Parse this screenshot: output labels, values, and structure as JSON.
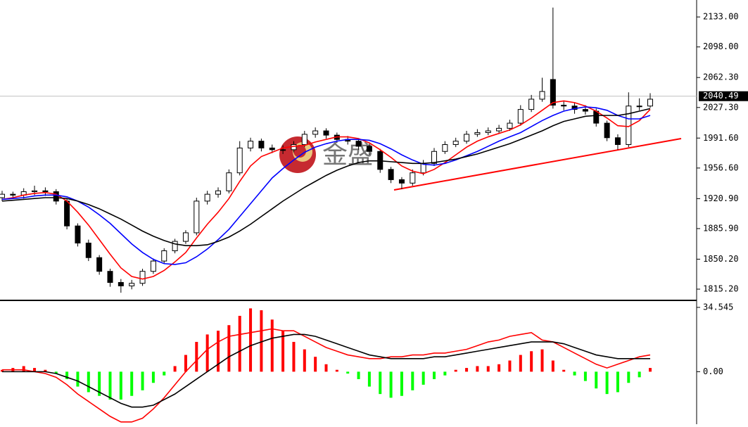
{
  "chart_data": [
    {
      "type": "candlestick",
      "watermark": "金盛",
      "ylim": [
        1802.9,
        2152.8
      ],
      "yticks": [
        {
          "value": 2133,
          "label": "2133.00"
        },
        {
          "value": 2098,
          "label": "2098.00"
        },
        {
          "value": 2062.3,
          "label": "2062.30"
        },
        {
          "value": 2027.3,
          "label": "2027.30"
        },
        {
          "value": 1991.6,
          "label": "1991.60"
        },
        {
          "value": 1956.6,
          "label": "1956.60"
        },
        {
          "value": 1920.9,
          "label": "1920.90"
        },
        {
          "value": 1885.9,
          "label": "1885.90"
        },
        {
          "value": 1850.2,
          "label": "1850.20"
        },
        {
          "value": 1815.2,
          "label": "1815.20"
        }
      ],
      "last_price": 2040.49,
      "up_color": "#ffffff",
      "down_color": "#000000",
      "open": [
        1922,
        1926,
        1925,
        1929,
        1930,
        1929,
        1918,
        1889,
        1869,
        1852,
        1836,
        1823,
        1819,
        1822,
        1836,
        1848,
        1860,
        1871,
        1881,
        1918,
        1926,
        1930,
        1951,
        1980,
        1988,
        1980,
        1978,
        1978,
        1984,
        1996,
        2000,
        1995,
        1990,
        1988,
        1982,
        1976,
        1955,
        1943,
        1939,
        1951,
        1962,
        1976,
        1984,
        1988,
        1996,
        1998,
        2000,
        2003,
        2009,
        2025,
        2037,
        2060,
        2030,
        2029,
        2025,
        2023,
        2009,
        1992,
        1984,
        2029,
        2029
      ],
      "high": [
        1930,
        1929,
        1933,
        1936,
        1934,
        1932,
        1921,
        1892,
        1873,
        1855,
        1839,
        1827,
        1826,
        1839,
        1851,
        1863,
        1874,
        1884,
        1922,
        1930,
        1934,
        1955,
        1988,
        1992,
        1991,
        1984,
        1983,
        1988,
        2000,
        2004,
        2003,
        1998,
        1994,
        1991,
        1985,
        1979,
        1958,
        1946,
        1955,
        1966,
        1980,
        1988,
        1992,
        2000,
        2002,
        2004,
        2007,
        2013,
        2030,
        2042,
        2062,
        2144,
        2035,
        2033,
        2030,
        2026,
        2012,
        1996,
        2045,
        2038,
        2044
      ],
      "low": [
        1918,
        1921,
        1921,
        1925,
        1924,
        1914,
        1885,
        1865,
        1848,
        1832,
        1818,
        1811,
        1815,
        1819,
        1833,
        1845,
        1857,
        1868,
        1878,
        1914,
        1922,
        1927,
        1948,
        1976,
        1976,
        1974,
        1973,
        1975,
        1981,
        1992,
        1991,
        1986,
        1984,
        1978,
        1972,
        1951,
        1939,
        1932,
        1936,
        1948,
        1959,
        1973,
        1981,
        1985,
        1993,
        1995,
        1997,
        2000,
        2006,
        2022,
        2034,
        2026,
        2024,
        2020,
        2019,
        2005,
        1988,
        1978,
        1981,
        2024,
        2027
      ],
      "close": [
        1926,
        1925,
        1929,
        1930,
        1929,
        1918,
        1889,
        1869,
        1852,
        1836,
        1823,
        1819,
        1822,
        1836,
        1848,
        1860,
        1871,
        1881,
        1918,
        1926,
        1930,
        1951,
        1980,
        1988,
        1980,
        1978,
        1978,
        1984,
        1996,
        2000,
        1995,
        1990,
        1988,
        1982,
        1976,
        1955,
        1943,
        1939,
        1951,
        1962,
        1976,
        1984,
        1988,
        1996,
        1998,
        2000,
        2003,
        2009,
        2025,
        2037,
        2046,
        2030,
        2029,
        2025,
        2023,
        2009,
        1992,
        1984,
        2029,
        2029,
        2037
      ],
      "series": [
        {
          "color": "#ff0000",
          "values": [
            1920,
            1922,
            1925,
            1927,
            1928,
            1926,
            1918,
            1905,
            1890,
            1873,
            1856,
            1840,
            1830,
            1827,
            1830,
            1837,
            1847,
            1858,
            1875,
            1891,
            1905,
            1921,
            1941,
            1959,
            1970,
            1975,
            1980,
            1982,
            1983,
            1987,
            1990,
            1993,
            1993,
            1991,
            1986,
            1978,
            1969,
            1959,
            1953,
            1950,
            1955,
            1963,
            1972,
            1981,
            1988,
            1993,
            1997,
            2001,
            2007,
            2015,
            2024,
            2033,
            2035,
            2033,
            2029,
            2023,
            2015,
            2006,
            2005,
            2012,
            2025
          ]
        },
        {
          "color": "#0000ff",
          "values": [
            1920,
            1921,
            1922,
            1924,
            1925,
            1925,
            1923,
            1918,
            1911,
            1902,
            1892,
            1880,
            1868,
            1858,
            1850,
            1845,
            1844,
            1846,
            1853,
            1862,
            1873,
            1885,
            1900,
            1915,
            1930,
            1945,
            1956,
            1966,
            1975,
            1981,
            1985,
            1988,
            1990,
            1990,
            1989,
            1985,
            1979,
            1972,
            1966,
            1961,
            1960,
            1962,
            1966,
            1971,
            1976,
            1982,
            1988,
            1993,
            1998,
            2005,
            2012,
            2018,
            2023,
            2026,
            2028,
            2027,
            2024,
            2018,
            2014,
            2014,
            2018
          ]
        },
        {
          "color": "#000000",
          "values": [
            1918,
            1919,
            1920,
            1921,
            1922,
            1922,
            1921,
            1918,
            1914,
            1909,
            1903,
            1897,
            1890,
            1883,
            1877,
            1872,
            1868,
            1866,
            1866,
            1867,
            1871,
            1876,
            1883,
            1891,
            1900,
            1909,
            1918,
            1926,
            1934,
            1941,
            1948,
            1954,
            1959,
            1963,
            1965,
            1965,
            1964,
            1963,
            1962,
            1962,
            1963,
            1965,
            1967,
            1970,
            1973,
            1977,
            1981,
            1985,
            1990,
            1995,
            2000,
            2006,
            2011,
            2014,
            2017,
            2018,
            2018,
            2018,
            2020,
            2023,
            2026
          ]
        }
      ]
    },
    {
      "type": "macd",
      "ylim": [
        -28.2,
        37.55
      ],
      "yticks": [
        34.545,
        {
          "value": 0,
          "label": "0.00"
        }
      ],
      "positive_color": "#ff0000",
      "negative_color": "#00ff00",
      "values": [
        1,
        2,
        3,
        2,
        1,
        -1,
        -4,
        -8,
        -11,
        -13,
        -15,
        -15,
        -13,
        -10,
        -6,
        -2,
        3,
        9,
        16,
        20,
        22,
        25,
        30,
        34,
        33,
        28,
        22,
        16,
        12,
        8,
        4,
        1,
        -1,
        -4,
        -8,
        -12,
        -14,
        -13,
        -10,
        -7,
        -4,
        -2,
        1,
        2,
        3,
        3,
        4,
        6,
        9,
        11,
        12,
        6,
        1,
        -2,
        -5,
        -9,
        -12,
        -11,
        -6,
        -3,
        2
      ],
      "series": [
        {
          "color": "#ff0000",
          "values": [
            1,
            1,
            1,
            0,
            -1,
            -3,
            -7,
            -12,
            -16,
            -20,
            -24,
            -27,
            -27,
            -25,
            -20,
            -14,
            -7,
            0,
            6,
            12,
            16,
            19,
            20,
            21,
            22,
            23,
            22,
            22,
            19,
            16,
            13,
            11,
            9,
            8,
            7,
            7,
            8,
            8,
            9,
            9,
            10,
            10,
            11,
            12,
            14,
            16,
            17,
            19,
            20,
            21,
            17,
            16,
            13,
            10,
            7,
            4,
            2,
            4,
            6,
            8,
            9
          ]
        },
        {
          "color": "#000000",
          "values": [
            0,
            0,
            0,
            0,
            0,
            -1,
            -3,
            -5,
            -8,
            -11,
            -14,
            -17,
            -19,
            -19,
            -18,
            -15,
            -12,
            -8,
            -4,
            0,
            4,
            8,
            11,
            14,
            16,
            18,
            19,
            20,
            20,
            19,
            17,
            15,
            13,
            11,
            9,
            8,
            7,
            7,
            7,
            7,
            8,
            8,
            9,
            10,
            11,
            12,
            13,
            14,
            15,
            16,
            16,
            16,
            15,
            13,
            11,
            9,
            8,
            7,
            7,
            7,
            7
          ]
        }
      ]
    }
  ]
}
